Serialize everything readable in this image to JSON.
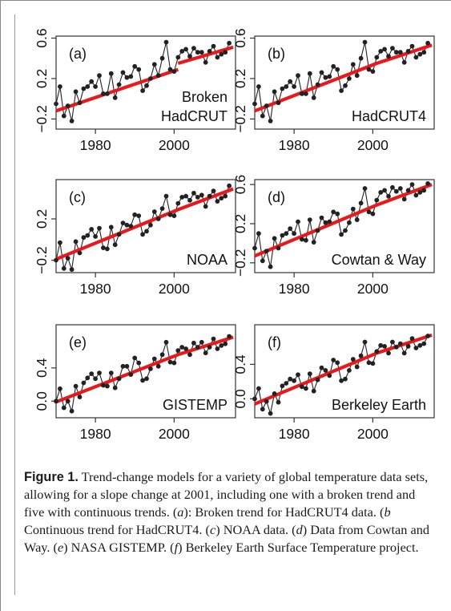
{
  "caption": {
    "lead": "Figure 1.",
    "s1": "Trend-change models for a variety of global temperature data sets, allowing for a slope change at 2001, including one with a broken trend and five with continuous trends. (",
    "ia": "a",
    "s2": "): Broken trend for HadCRUT4 data. (",
    "ib": "b",
    "s3": " Continuous trend for HadCRUT4. (",
    "ic": "c",
    "s4": ") NOAA data. (",
    "id": "d",
    "s5": ") Data from Cowtan and Way. (",
    "ie": "e",
    "s6": ") NASA GISTEMP. (",
    "if": "f",
    "s7": ") Berkeley Earth Surface Temperature project."
  },
  "colors": {
    "trend": "#e8191c",
    "data": "#222222",
    "axis": "#333333"
  },
  "chart_data": [
    {
      "type": "line",
      "panel": "(a)",
      "label": "Broken\nHadCRUT",
      "trend": "broken",
      "xlim": [
        1970,
        2015.6
      ],
      "ylim": [
        -0.3,
        0.62
      ],
      "xticks": [
        1980,
        2000
      ],
      "yticks": [
        -0.2,
        0.2,
        0.6
      ],
      "ytick_labels": [
        "−0.2",
        "0.2",
        "0.6"
      ],
      "x": [
        1970,
        1971,
        1972,
        1973,
        1974,
        1975,
        1976,
        1977,
        1978,
        1979,
        1980,
        1981,
        1982,
        1983,
        1984,
        1985,
        1986,
        1987,
        1988,
        1989,
        1990,
        1991,
        1992,
        1993,
        1994,
        1995,
        1996,
        1997,
        1998,
        1999,
        2000,
        2001,
        2002,
        2003,
        2004,
        2005,
        2006,
        2007,
        2008,
        2009,
        2010,
        2011,
        2012,
        2013,
        2014
      ],
      "y": [
        -0.05,
        0.12,
        -0.17,
        -0.07,
        -0.22,
        0.07,
        -0.04,
        0.1,
        0.12,
        0.17,
        0.12,
        0.23,
        0.05,
        0.05,
        0.25,
        0.01,
        0.14,
        0.26,
        0.21,
        0.22,
        0.32,
        0.29,
        0.08,
        0.13,
        0.2,
        0.34,
        0.23,
        0.4,
        0.56,
        0.29,
        0.27,
        0.41,
        0.47,
        0.49,
        0.42,
        0.5,
        0.46,
        0.46,
        0.36,
        0.47,
        0.52,
        0.41,
        0.44,
        0.46,
        0.55
      ],
      "trend_segments": [
        {
          "x": [
            1970,
            2001
          ],
          "y": [
            -0.12,
            0.29
          ]
        },
        {
          "x": [
            2001,
            2015
          ],
          "y": [
            0.35,
            0.51
          ]
        }
      ]
    },
    {
      "type": "line",
      "panel": "(b)",
      "label": "HadCRUT4",
      "trend": "continuous",
      "xlim": [
        1970,
        2015.6
      ],
      "ylim": [
        -0.3,
        0.62
      ],
      "xticks": [
        1980,
        2000
      ],
      "yticks": [
        -0.2,
        0.2,
        0.6
      ],
      "ytick_labels": [
        "−0.2",
        "0.2",
        "0.6"
      ],
      "x": [
        1970,
        1971,
        1972,
        1973,
        1974,
        1975,
        1976,
        1977,
        1978,
        1979,
        1980,
        1981,
        1982,
        1983,
        1984,
        1985,
        1986,
        1987,
        1988,
        1989,
        1990,
        1991,
        1992,
        1993,
        1994,
        1995,
        1996,
        1997,
        1998,
        1999,
        2000,
        2001,
        2002,
        2003,
        2004,
        2005,
        2006,
        2007,
        2008,
        2009,
        2010,
        2011,
        2012,
        2013,
        2014
      ],
      "y": [
        -0.05,
        0.12,
        -0.17,
        -0.07,
        -0.22,
        0.07,
        -0.04,
        0.1,
        0.12,
        0.17,
        0.12,
        0.23,
        0.05,
        0.05,
        0.25,
        0.01,
        0.14,
        0.26,
        0.21,
        0.22,
        0.32,
        0.29,
        0.08,
        0.13,
        0.2,
        0.34,
        0.23,
        0.4,
        0.56,
        0.29,
        0.27,
        0.41,
        0.47,
        0.49,
        0.42,
        0.5,
        0.46,
        0.46,
        0.36,
        0.47,
        0.52,
        0.41,
        0.44,
        0.46,
        0.55
      ],
      "trend_segments": [
        {
          "x": [
            1970,
            2001,
            2015
          ],
          "y": [
            -0.12,
            0.35,
            0.53
          ]
        }
      ]
    },
    {
      "type": "line",
      "panel": "(c)",
      "label": "NOAA",
      "trend": "continuous",
      "xlim": [
        1970,
        2015.6
      ],
      "ylim": [
        -0.32,
        0.58
      ],
      "xticks": [
        1980,
        2000
      ],
      "yticks": [
        -0.2,
        0.2
      ],
      "ytick_labels": [
        "−0.2",
        "0.2"
      ],
      "x": [
        1970,
        1971,
        1972,
        1973,
        1974,
        1975,
        1976,
        1977,
        1978,
        1979,
        1980,
        1981,
        1982,
        1983,
        1984,
        1985,
        1986,
        1987,
        1988,
        1989,
        1990,
        1991,
        1992,
        1993,
        1994,
        1995,
        1996,
        1997,
        1998,
        1999,
        2000,
        2001,
        2002,
        2003,
        2004,
        2005,
        2006,
        2007,
        2008,
        2009,
        2010,
        2011,
        2012,
        2013,
        2014
      ],
      "y": [
        -0.2,
        -0.03,
        -0.28,
        -0.18,
        -0.29,
        -0.02,
        -0.13,
        0.02,
        0.04,
        0.1,
        0.03,
        0.11,
        -0.08,
        -0.09,
        0.12,
        -0.05,
        0.05,
        0.16,
        0.14,
        0.13,
        0.24,
        0.23,
        0.05,
        0.08,
        0.14,
        0.27,
        0.2,
        0.3,
        0.42,
        0.24,
        0.23,
        0.35,
        0.41,
        0.42,
        0.38,
        0.45,
        0.41,
        0.43,
        0.32,
        0.42,
        0.47,
        0.37,
        0.4,
        0.42,
        0.52
      ],
      "trend_segments": [
        {
          "x": [
            1970,
            2001,
            2015
          ],
          "y": [
            -0.19,
            0.29,
            0.49
          ]
        }
      ]
    },
    {
      "type": "line",
      "panel": "(d)",
      "label": "Cowtan & Way",
      "trend": "continuous",
      "xlim": [
        1970,
        2015.6
      ],
      "ylim": [
        -0.3,
        0.65
      ],
      "xticks": [
        1980,
        2000
      ],
      "yticks": [
        -0.2,
        0.2,
        0.6
      ],
      "ytick_labels": [
        "−0.2",
        "0.2",
        "0.6"
      ],
      "x": [
        1970,
        1971,
        1972,
        1973,
        1974,
        1975,
        1976,
        1977,
        1978,
        1979,
        1980,
        1981,
        1982,
        1983,
        1984,
        1985,
        1986,
        1987,
        1988,
        1989,
        1990,
        1991,
        1992,
        1993,
        1994,
        1995,
        1996,
        1997,
        1998,
        1999,
        2000,
        2001,
        2002,
        2003,
        2004,
        2005,
        2006,
        2007,
        2008,
        2009,
        2010,
        2011,
        2012,
        2013,
        2014
      ],
      "y": [
        -0.05,
        0.1,
        -0.18,
        -0.08,
        -0.24,
        0.05,
        -0.05,
        0.08,
        0.1,
        0.15,
        0.1,
        0.22,
        0.04,
        0.03,
        0.24,
        0.01,
        0.13,
        0.26,
        0.21,
        0.22,
        0.32,
        0.3,
        0.09,
        0.13,
        0.21,
        0.35,
        0.24,
        0.41,
        0.56,
        0.32,
        0.3,
        0.44,
        0.52,
        0.54,
        0.48,
        0.57,
        0.53,
        0.56,
        0.45,
        0.54,
        0.6,
        0.49,
        0.52,
        0.54,
        0.61
      ],
      "trend_segments": [
        {
          "x": [
            1970,
            2001,
            2015
          ],
          "y": [
            -0.13,
            0.39,
            0.6
          ]
        }
      ]
    },
    {
      "type": "line",
      "panel": "(e)",
      "label": "GISTEMP",
      "trend": "continuous",
      "xlim": [
        1970,
        2015.6
      ],
      "ylim": [
        -0.2,
        0.92
      ],
      "xticks": [
        1980,
        2000
      ],
      "yticks": [
        0.0,
        0.4
      ],
      "ytick_labels": [
        "0.0",
        "0.4"
      ],
      "x": [
        1970,
        1971,
        1972,
        1973,
        1974,
        1975,
        1976,
        1977,
        1978,
        1979,
        1980,
        1981,
        1982,
        1983,
        1984,
        1985,
        1986,
        1987,
        1988,
        1989,
        1990,
        1991,
        1992,
        1993,
        1994,
        1995,
        1996,
        1997,
        1998,
        1999,
        2000,
        2001,
        2002,
        2003,
        2004,
        2005,
        2006,
        2007,
        2008,
        2009,
        2010,
        2011,
        2012,
        2013,
        2014
      ],
      "y": [
        0.0,
        0.15,
        -0.08,
        0.0,
        -0.12,
        0.18,
        0.05,
        0.22,
        0.28,
        0.33,
        0.27,
        0.34,
        0.19,
        0.18,
        0.34,
        0.16,
        0.27,
        0.42,
        0.42,
        0.32,
        0.52,
        0.46,
        0.25,
        0.27,
        0.39,
        0.51,
        0.42,
        0.56,
        0.71,
        0.47,
        0.46,
        0.61,
        0.65,
        0.63,
        0.56,
        0.7,
        0.65,
        0.71,
        0.58,
        0.65,
        0.75,
        0.63,
        0.67,
        0.69,
        0.78
      ],
      "trend_segments": [
        {
          "x": [
            1970,
            2001,
            2015
          ],
          "y": [
            -0.01,
            0.56,
            0.77
          ]
        }
      ]
    },
    {
      "type": "line",
      "panel": "(f)",
      "label": "Berkeley Earth",
      "trend": "continuous",
      "xlim": [
        1970,
        2015.6
      ],
      "ylim": [
        -0.22,
        0.86
      ],
      "xticks": [
        1980,
        2000
      ],
      "yticks": [
        0.0,
        0.4
      ],
      "ytick_labels": [
        "0.0",
        "0.4"
      ],
      "x": [
        1970,
        1971,
        1972,
        1973,
        1974,
        1975,
        1976,
        1977,
        1978,
        1979,
        1980,
        1981,
        1982,
        1983,
        1984,
        1985,
        1986,
        1987,
        1988,
        1989,
        1990,
        1991,
        1992,
        1993,
        1994,
        1995,
        1996,
        1997,
        1998,
        1999,
        2000,
        2001,
        2002,
        2003,
        2004,
        2005,
        2006,
        2007,
        2008,
        2009,
        2010,
        2011,
        2012,
        2013,
        2014
      ],
      "y": [
        0.0,
        0.12,
        -0.12,
        -0.03,
        -0.17,
        0.06,
        -0.04,
        0.15,
        0.18,
        0.23,
        0.21,
        0.28,
        0.14,
        0.12,
        0.29,
        0.09,
        0.22,
        0.36,
        0.33,
        0.27,
        0.45,
        0.42,
        0.21,
        0.23,
        0.33,
        0.46,
        0.37,
        0.5,
        0.66,
        0.42,
        0.41,
        0.55,
        0.62,
        0.61,
        0.53,
        0.66,
        0.6,
        0.64,
        0.53,
        0.61,
        0.7,
        0.59,
        0.62,
        0.64,
        0.73
      ],
      "trend_segments": [
        {
          "x": [
            1970,
            2001,
            2015
          ],
          "y": [
            -0.06,
            0.53,
            0.74
          ]
        }
      ]
    }
  ]
}
